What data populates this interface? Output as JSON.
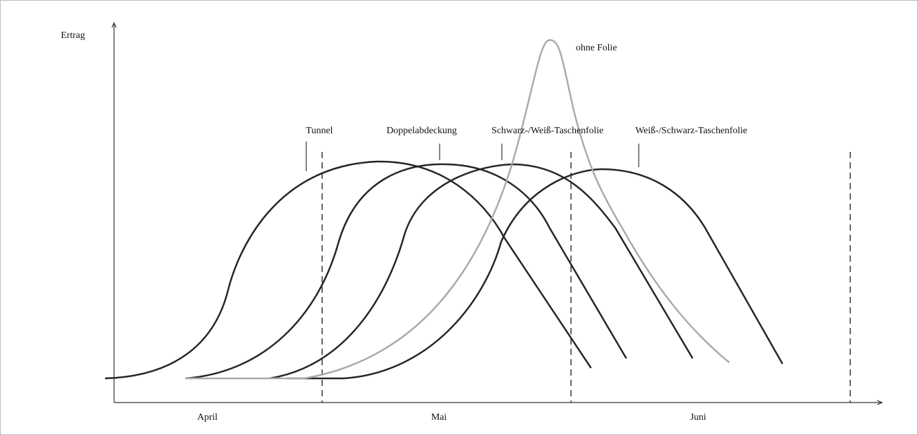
{
  "axis": {
    "y_label": "Ertrag"
  },
  "curves": [
    {
      "label": "Tunnel"
    },
    {
      "label": "Doppelabdeckung"
    },
    {
      "label": "Schwarz-/Weiß-Taschenfolie"
    },
    {
      "label": "Weiß-/Schwarz-Taschenfolie"
    },
    {
      "label": "ohne Folie"
    }
  ],
  "months": [
    "April",
    "Mai",
    "Juni"
  ]
}
